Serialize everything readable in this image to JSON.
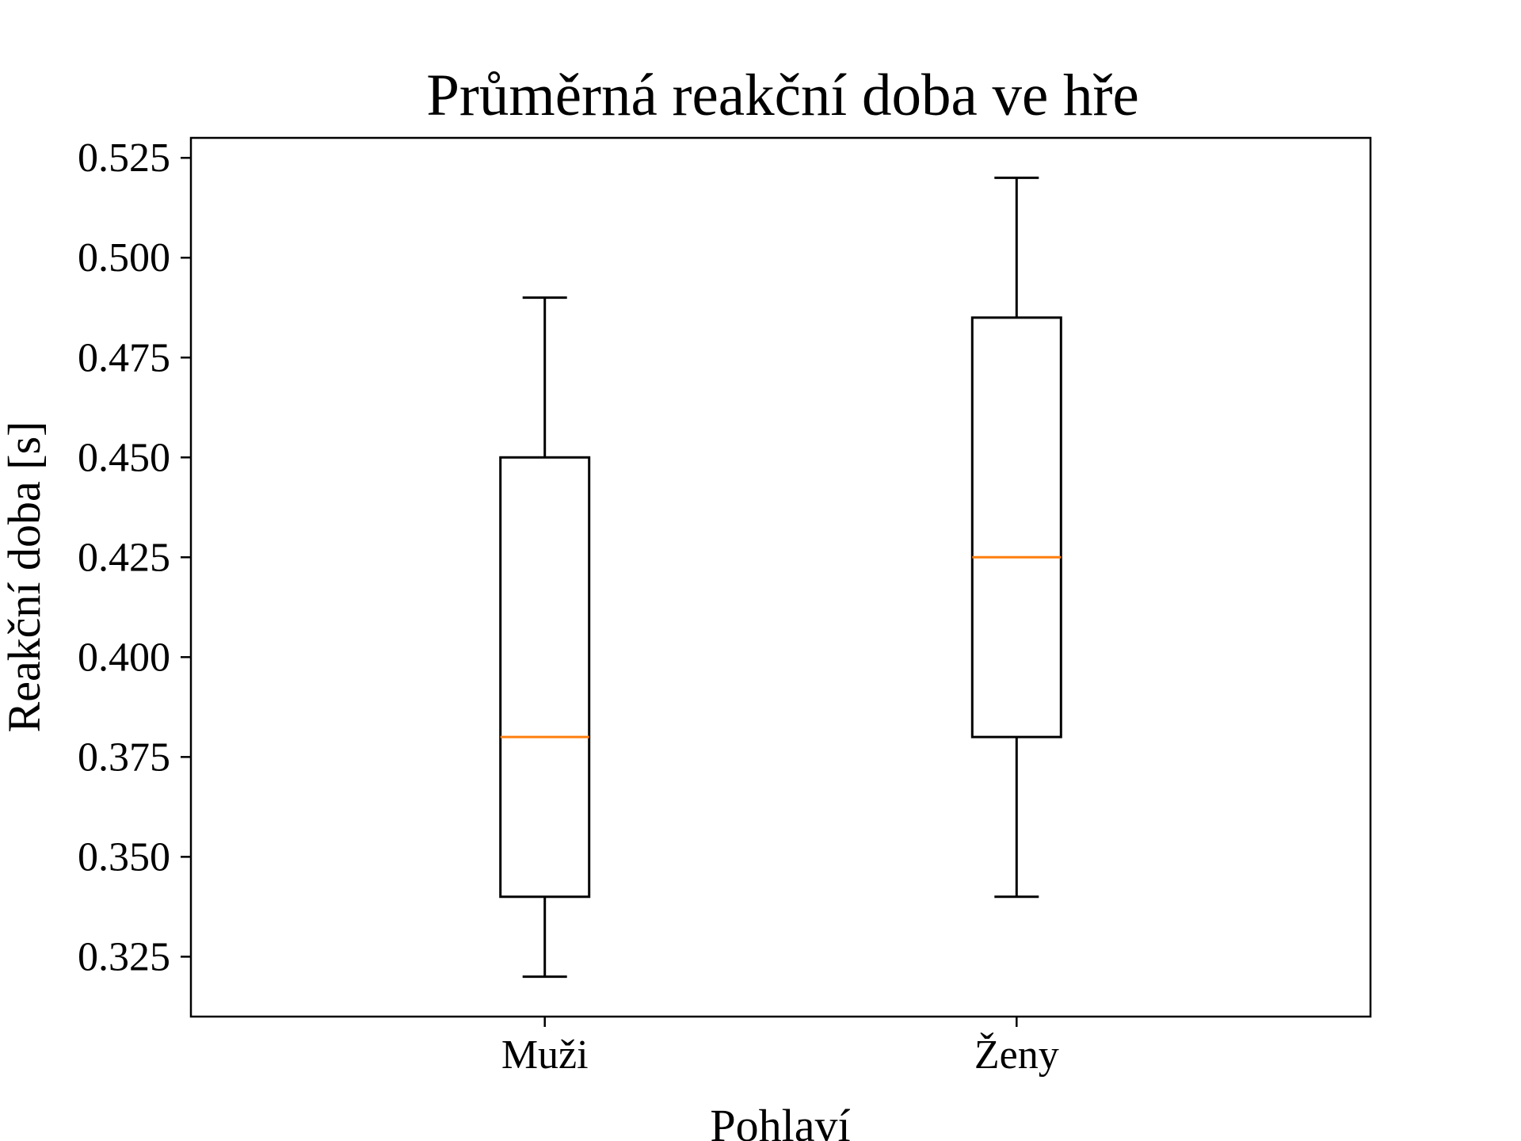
{
  "chart_data": {
    "type": "boxplot",
    "title": "Průměrná reakční doba ve hře",
    "xlabel": "Pohlaví",
    "ylabel": "Reakční doba [s]",
    "categories": [
      "Muži",
      "Ženy"
    ],
    "boxes": [
      {
        "category": "Muži",
        "whisker_low": 0.32,
        "q1": 0.34,
        "median": 0.38,
        "q3": 0.45,
        "whisker_high": 0.49
      },
      {
        "category": "Ženy",
        "whisker_low": 0.34,
        "q1": 0.38,
        "median": 0.425,
        "q3": 0.485,
        "whisker_high": 0.52
      }
    ],
    "ylim": [
      0.31,
      0.53
    ],
    "yticks": [
      0.325,
      0.35,
      0.375,
      0.4,
      0.425,
      0.45,
      0.475,
      0.5,
      0.525
    ],
    "ytick_labels": [
      "0.325",
      "0.350",
      "0.375",
      "0.400",
      "0.425",
      "0.450",
      "0.475",
      "0.500",
      "0.525"
    ],
    "grid": false,
    "colors": {
      "box": "#000000",
      "median": "#ff7f0e",
      "axis": "#000000"
    }
  }
}
